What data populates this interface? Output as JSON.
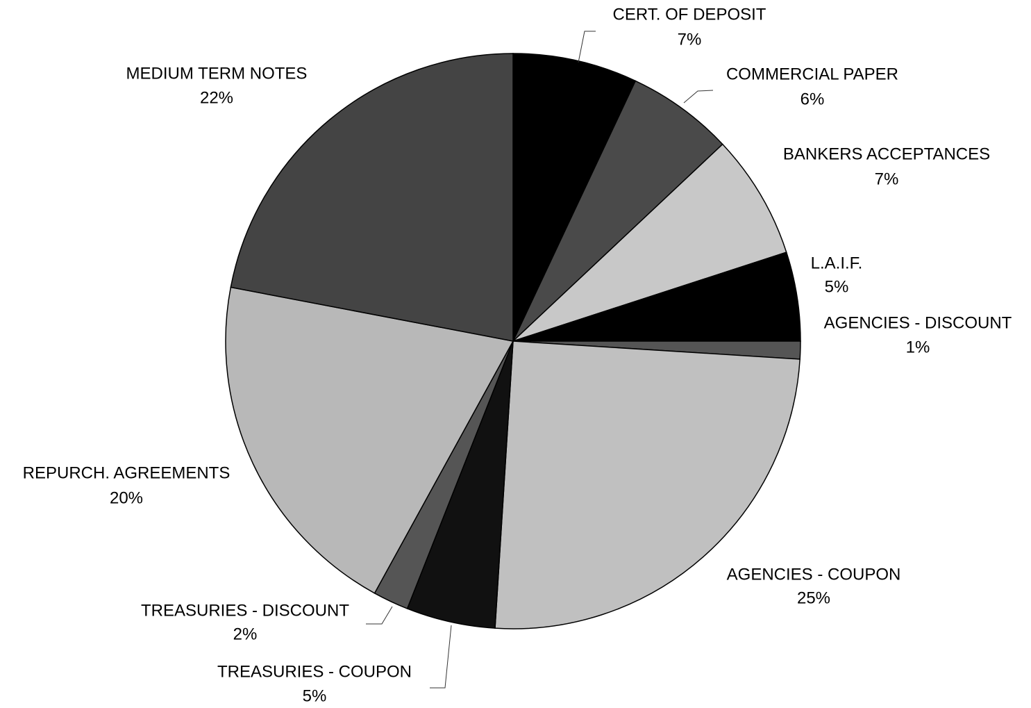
{
  "chart_data": {
    "type": "pie",
    "categories": [
      "CERT. OF DEPOSIT",
      "COMMERCIAL PAPER",
      "BANKERS ACCEPTANCES",
      "L.A.I.F.",
      "AGENCIES - DISCOUNT",
      "AGENCIES - COUPON",
      "TREASURIES - COUPON",
      "TREASURIES - DISCOUNT",
      "REPURCH. AGREEMENTS",
      "MEDIUM TERM NOTES"
    ],
    "values": [
      7,
      6,
      7,
      5,
      1,
      25,
      5,
      2,
      20,
      22
    ],
    "value_labels": [
      "7%",
      "6%",
      "7%",
      "5%",
      "1%",
      "25%",
      "5%",
      "2%",
      "20%",
      "22%"
    ],
    "colors": [
      "#000000",
      "#4a4a4a",
      "#c8c8c8",
      "#000000",
      "#555555",
      "#c0c0c0",
      "#111111",
      "#555555",
      "#b8b8b8",
      "#444444"
    ]
  }
}
